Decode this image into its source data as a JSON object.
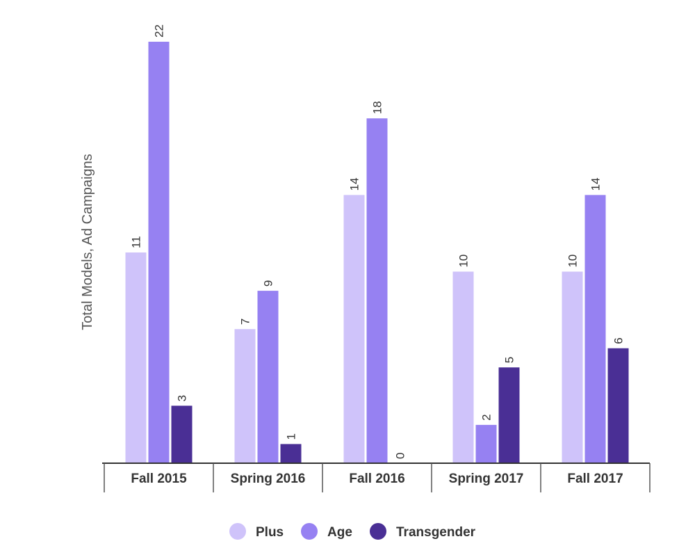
{
  "chart_data": {
    "type": "bar",
    "title": "",
    "xlabel": "",
    "ylabel": "Total Models, Ad Campaigns",
    "categories": [
      "Fall 2015",
      "Spring 2016",
      "Fall 2016",
      "Spring 2017",
      "Fall 2017"
    ],
    "series": [
      {
        "name": "Plus",
        "color": "#cfc3fa",
        "values": [
          11,
          7,
          14,
          10,
          10
        ]
      },
      {
        "name": "Age",
        "color": "#9681f2",
        "values": [
          22,
          9,
          18,
          2,
          14
        ]
      },
      {
        "name": "Transgender",
        "color": "#4a2f95",
        "values": [
          3,
          1,
          0,
          5,
          6
        ]
      }
    ],
    "ylim": [
      0,
      22
    ],
    "grid": false,
    "legend_position": "bottom",
    "data_labels": true
  }
}
